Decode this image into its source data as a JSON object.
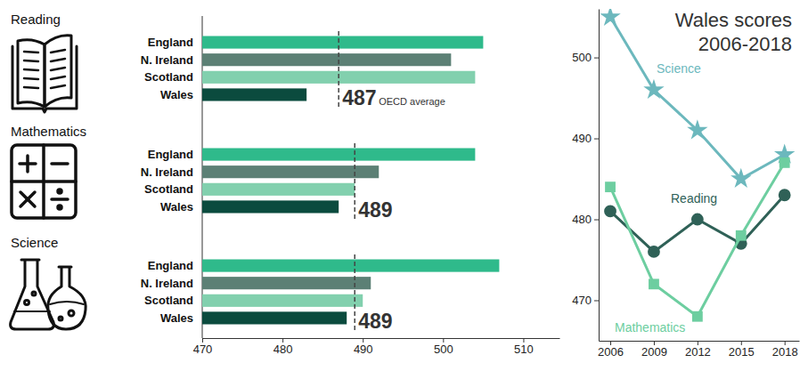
{
  "chart_data": [
    {
      "type": "bar",
      "title": "Reading",
      "orientation": "horizontal",
      "categories": [
        "England",
        "N. Ireland",
        "Scotland",
        "Wales"
      ],
      "values": [
        505,
        501,
        504,
        483
      ],
      "colors": [
        "#2fba8b",
        "#5c8075",
        "#82d0ae",
        "#0b4b3e"
      ],
      "xlim": [
        470,
        514.5
      ],
      "tick_labels": false,
      "reference": {
        "value": 487,
        "label": "OECD average"
      }
    },
    {
      "type": "bar",
      "title": "Mathematics",
      "orientation": "horizontal",
      "categories": [
        "England",
        "N. Ireland",
        "Scotland",
        "Wales"
      ],
      "values": [
        504,
        492,
        489,
        487
      ],
      "colors": [
        "#2fba8b",
        "#5c8075",
        "#82d0ae",
        "#0b4b3e"
      ],
      "xlim": [
        470,
        514.5
      ],
      "tick_labels": false,
      "reference": {
        "value": 489
      }
    },
    {
      "type": "bar",
      "title": "Science",
      "orientation": "horizontal",
      "categories": [
        "England",
        "N. Ireland",
        "Scotland",
        "Wales"
      ],
      "values": [
        507,
        491,
        490,
        488
      ],
      "colors": [
        "#2fba8b",
        "#5c8075",
        "#82d0ae",
        "#0b4b3e"
      ],
      "xlim": [
        470,
        514.5
      ],
      "xticks": [
        470,
        480,
        490,
        500,
        510
      ],
      "reference": {
        "value": 489
      }
    },
    {
      "type": "line",
      "title": "Wales scores\n2006-2018",
      "x": [
        2006,
        2009,
        2012,
        2015,
        2018
      ],
      "xlim": [
        2005.2,
        2019
      ],
      "xticks": [
        2006,
        2009,
        2012,
        2015,
        2018
      ],
      "ylim": [
        465,
        506
      ],
      "yticks": [
        470,
        480,
        490,
        500
      ],
      "series": [
        {
          "name": "Science",
          "color": "#6cb8bd",
          "marker": "star",
          "values": [
            505,
            496,
            491,
            485,
            488
          ]
        },
        {
          "name": "Reading",
          "color": "#2f6157",
          "marker": "circle",
          "values": [
            481,
            476,
            480,
            477,
            483
          ]
        },
        {
          "name": "Mathematics",
          "color": "#6dcea0",
          "marker": "square",
          "values": [
            484,
            472,
            468,
            478,
            487
          ]
        }
      ]
    }
  ]
}
